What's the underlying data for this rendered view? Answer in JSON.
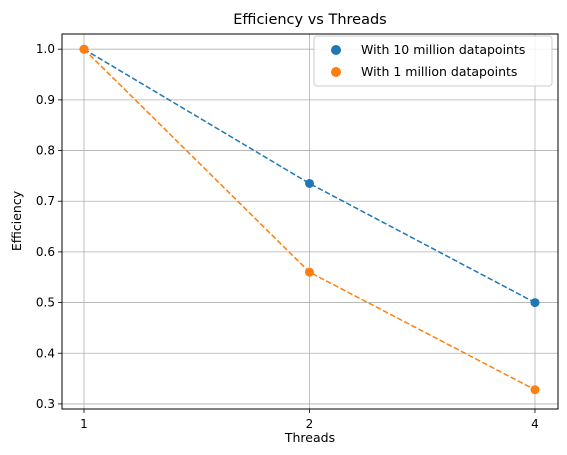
{
  "chart_data": {
    "type": "scatter",
    "title": "Efficiency vs Threads",
    "xlabel": "Threads",
    "ylabel": "Efficiency",
    "x": [
      1,
      2,
      4
    ],
    "x_tick_labels": [
      "1",
      "2",
      "4"
    ],
    "x_axis": "categorical",
    "ylim": [
      0.29,
      1.03
    ],
    "y_ticks": [
      0.3,
      0.4,
      0.5,
      0.6,
      0.7,
      0.8,
      0.9,
      1.0
    ],
    "y_tick_labels": [
      "0.3",
      "0.4",
      "0.5",
      "0.6",
      "0.7",
      "0.8",
      "0.9",
      "1.0"
    ],
    "grid": true,
    "legend_position": "top-right",
    "series": [
      {
        "name": "With 10 million datapoints",
        "values": [
          1.0,
          0.735,
          0.5
        ],
        "color": "#1f77b4",
        "line": "dashed"
      },
      {
        "name": "With 1 million datapoints",
        "values": [
          1.0,
          0.56,
          0.328
        ],
        "color": "#ff7f0e",
        "line": "dashed"
      }
    ]
  }
}
